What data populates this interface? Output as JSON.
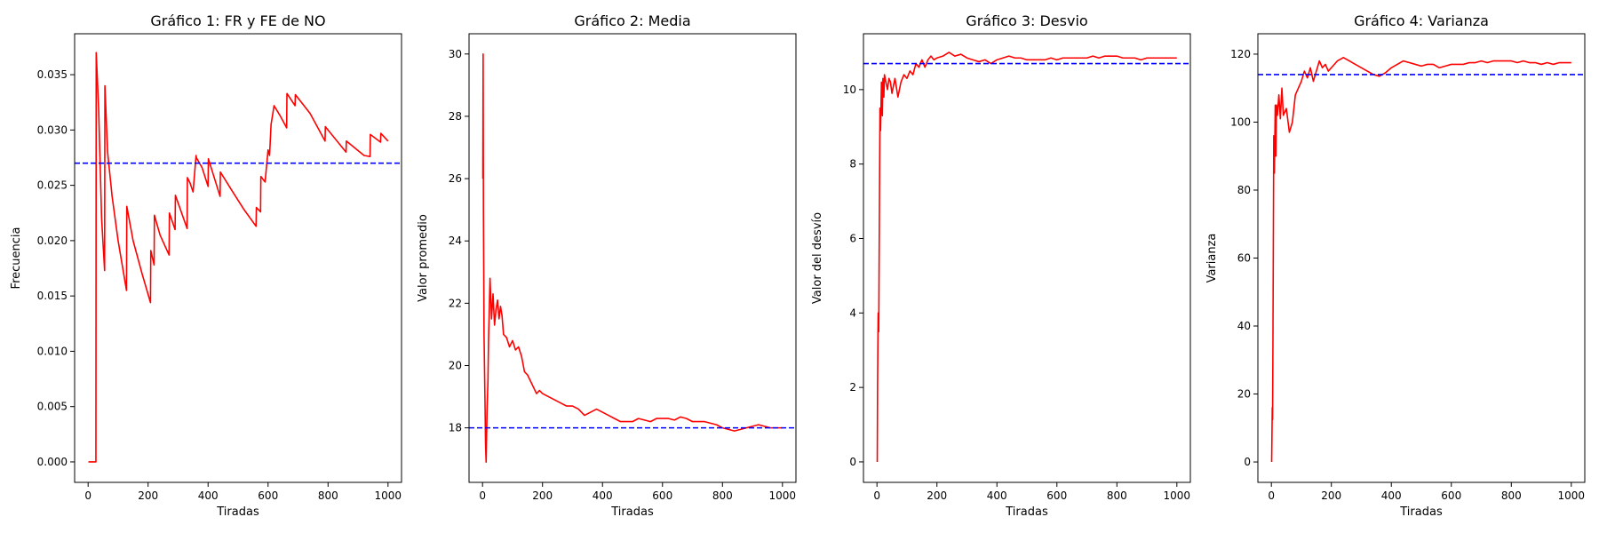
{
  "chart_data": [
    {
      "type": "line",
      "title": "Gráfico 1: FR y FE de NO",
      "xlabel": "Tiradas",
      "ylabel": "Frecuencia",
      "xlim": [
        -45,
        1045
      ],
      "ylim": [
        -0.00185,
        0.0387
      ],
      "xticks": [
        0,
        200,
        400,
        600,
        800,
        1000
      ],
      "yticks": [
        0.0,
        0.005,
        0.01,
        0.015,
        0.02,
        0.025,
        0.03,
        0.035
      ],
      "ytick_decimals": 3,
      "grid": false,
      "series": [
        {
          "color": "#ff0000",
          "x": [
            1,
            26,
            27,
            35,
            45,
            55,
            56,
            65,
            80,
            100,
            128,
            129,
            150,
            180,
            208,
            209,
            220,
            221,
            240,
            270,
            271,
            290,
            291,
            330,
            331,
            340,
            350,
            360,
            361,
            380,
            400,
            401,
            440,
            441,
            480,
            520,
            560,
            561,
            575,
            576,
            590,
            600,
            605,
            610,
            620,
            640,
            662,
            663,
            690,
            691,
            740,
            790,
            791,
            860,
            861,
            920,
            940,
            941,
            975,
            976,
            1000
          ],
          "y": [
            0.0,
            0.0,
            0.037,
            0.032,
            0.022,
            0.0173,
            0.034,
            0.028,
            0.024,
            0.02,
            0.0155,
            0.0231,
            0.02,
            0.017,
            0.0144,
            0.0191,
            0.0178,
            0.0223,
            0.0205,
            0.0187,
            0.0225,
            0.021,
            0.0241,
            0.0211,
            0.0257,
            0.0252,
            0.0244,
            0.0277,
            0.0275,
            0.0266,
            0.0249,
            0.0274,
            0.024,
            0.0262,
            0.0245,
            0.0228,
            0.0213,
            0.023,
            0.0226,
            0.0258,
            0.0253,
            0.0282,
            0.0277,
            0.0305,
            0.0322,
            0.0313,
            0.0302,
            0.0333,
            0.0322,
            0.0332,
            0.0315,
            0.029,
            0.0303,
            0.028,
            0.029,
            0.0277,
            0.0276,
            0.0296,
            0.0289,
            0.0297,
            0.029
          ]
        }
      ],
      "hline": {
        "y": 0.027,
        "color": "#0000ff",
        "style": "dashed"
      }
    },
    {
      "type": "line",
      "title": "Gráfico 2: Media",
      "xlabel": "Tiradas",
      "ylabel": "Valor promedio",
      "xlim": [
        -45,
        1045
      ],
      "ylim": [
        16.25,
        30.65
      ],
      "xticks": [
        0,
        200,
        400,
        600,
        800,
        1000
      ],
      "yticks": [
        18,
        20,
        22,
        24,
        26,
        28,
        30
      ],
      "ytick_decimals": 0,
      "grid": false,
      "series": [
        {
          "color": "#ff0000",
          "x": [
            1,
            2,
            3,
            5,
            8,
            10,
            12,
            15,
            18,
            20,
            22,
            25,
            30,
            35,
            40,
            45,
            50,
            55,
            60,
            65,
            70,
            80,
            90,
            100,
            110,
            120,
            130,
            140,
            150,
            160,
            170,
            180,
            190,
            200,
            220,
            240,
            260,
            280,
            300,
            320,
            340,
            360,
            380,
            400,
            420,
            440,
            460,
            480,
            500,
            520,
            540,
            560,
            580,
            600,
            620,
            640,
            660,
            680,
            700,
            720,
            740,
            760,
            780,
            800,
            820,
            840,
            860,
            880,
            900,
            920,
            940,
            960,
            980,
            1000
          ],
          "y": [
            26.0,
            30.0,
            25.0,
            21.0,
            19.0,
            17.5,
            16.9,
            18.5,
            19.5,
            20.8,
            21.6,
            22.8,
            21.5,
            22.3,
            21.3,
            21.8,
            22.1,
            21.5,
            21.9,
            21.6,
            21.0,
            20.9,
            20.6,
            20.8,
            20.5,
            20.6,
            20.3,
            19.8,
            19.7,
            19.5,
            19.3,
            19.1,
            19.2,
            19.1,
            19.0,
            18.9,
            18.8,
            18.7,
            18.7,
            18.6,
            18.4,
            18.5,
            18.6,
            18.5,
            18.4,
            18.3,
            18.2,
            18.2,
            18.2,
            18.3,
            18.25,
            18.2,
            18.3,
            18.3,
            18.3,
            18.25,
            18.35,
            18.3,
            18.2,
            18.2,
            18.2,
            18.15,
            18.1,
            18.0,
            17.95,
            17.9,
            17.95,
            18.0,
            18.05,
            18.1,
            18.05,
            18.0,
            18.0,
            18.0
          ]
        }
      ],
      "hline": {
        "y": 18,
        "color": "#0000ff",
        "style": "dashed"
      }
    },
    {
      "type": "line",
      "title": "Gráfico 3: Desvio",
      "xlabel": "Tiradas",
      "ylabel": "Valor del desvío",
      "xlim": [
        -45,
        1045
      ],
      "ylim": [
        -0.55,
        11.5
      ],
      "xticks": [
        0,
        200,
        400,
        600,
        800,
        1000
      ],
      "yticks": [
        0,
        2,
        4,
        6,
        8,
        10
      ],
      "ytick_decimals": 0,
      "grid": false,
      "series": [
        {
          "color": "#ff0000",
          "x": [
            1,
            2,
            4,
            6,
            7,
            9,
            10,
            12,
            15,
            18,
            20,
            23,
            25,
            30,
            35,
            40,
            45,
            50,
            60,
            70,
            80,
            90,
            100,
            110,
            120,
            130,
            140,
            150,
            160,
            170,
            180,
            190,
            200,
            220,
            240,
            260,
            280,
            300,
            320,
            340,
            360,
            380,
            400,
            420,
            440,
            460,
            480,
            500,
            520,
            540,
            560,
            580,
            600,
            620,
            640,
            660,
            680,
            700,
            720,
            740,
            760,
            780,
            800,
            820,
            840,
            860,
            880,
            900,
            920,
            940,
            960,
            980,
            1000
          ],
          "y": [
            0.0,
            2.0,
            4.0,
            3.5,
            5.0,
            8.0,
            9.5,
            8.9,
            10.2,
            9.3,
            10.3,
            9.8,
            10.4,
            10.2,
            10.0,
            10.3,
            10.2,
            9.9,
            10.3,
            9.8,
            10.2,
            10.4,
            10.3,
            10.5,
            10.4,
            10.7,
            10.6,
            10.8,
            10.6,
            10.8,
            10.9,
            10.8,
            10.85,
            10.9,
            11.0,
            10.9,
            10.95,
            10.85,
            10.8,
            10.75,
            10.8,
            10.7,
            10.8,
            10.85,
            10.9,
            10.85,
            10.85,
            10.8,
            10.8,
            10.8,
            10.8,
            10.85,
            10.8,
            10.85,
            10.85,
            10.85,
            10.85,
            10.85,
            10.9,
            10.85,
            10.9,
            10.9,
            10.9,
            10.85,
            10.85,
            10.85,
            10.8,
            10.85,
            10.85,
            10.85,
            10.85,
            10.85,
            10.85
          ]
        }
      ],
      "hline": {
        "y": 10.7,
        "color": "#0000ff",
        "style": "dashed"
      }
    },
    {
      "type": "line",
      "title": "Gráfico 4: Varianza",
      "xlabel": "Tiradas",
      "ylabel": "Varianza",
      "xlim": [
        -45,
        1045
      ],
      "ylim": [
        -6,
        126
      ],
      "xticks": [
        0,
        200,
        400,
        600,
        800,
        1000
      ],
      "yticks": [
        0,
        20,
        40,
        60,
        80,
        100,
        120
      ],
      "ytick_decimals": 0,
      "grid": false,
      "series": [
        {
          "color": "#ff0000",
          "x": [
            1,
            3,
            4,
            5,
            8,
            10,
            13,
            15,
            17,
            20,
            25,
            30,
            35,
            40,
            50,
            60,
            70,
            80,
            90,
            100,
            110,
            120,
            130,
            140,
            150,
            160,
            170,
            180,
            190,
            200,
            220,
            240,
            260,
            280,
            300,
            320,
            340,
            360,
            380,
            400,
            420,
            440,
            460,
            480,
            500,
            520,
            540,
            560,
            580,
            600,
            620,
            640,
            660,
            680,
            700,
            720,
            740,
            760,
            780,
            800,
            820,
            840,
            860,
            880,
            900,
            920,
            940,
            960,
            980,
            1000
          ],
          "y": [
            0.0,
            16.0,
            12.5,
            30.0,
            96.0,
            85.0,
            105.0,
            90.0,
            105.0,
            102.0,
            108.0,
            101.0,
            110.0,
            102.0,
            104.0,
            97.0,
            100.0,
            108.0,
            110.0,
            112.0,
            115.0,
            113.0,
            116.0,
            112.0,
            115.0,
            118.0,
            116.0,
            117.0,
            115.0,
            116.0,
            118.0,
            119.0,
            118.0,
            117.0,
            116.0,
            115.0,
            114.0,
            113.5,
            114.5,
            116.0,
            117.0,
            118.0,
            117.5,
            117.0,
            116.5,
            117.0,
            117.0,
            116.0,
            116.5,
            117.0,
            117.0,
            117.0,
            117.5,
            117.5,
            118.0,
            117.5,
            118.0,
            118.0,
            118.0,
            118.0,
            117.5,
            118.0,
            117.5,
            117.5,
            117.0,
            117.5,
            117.0,
            117.5,
            117.5,
            117.5
          ]
        }
      ],
      "hline": {
        "y": 114,
        "color": "#0000ff",
        "style": "dashed"
      }
    }
  ]
}
